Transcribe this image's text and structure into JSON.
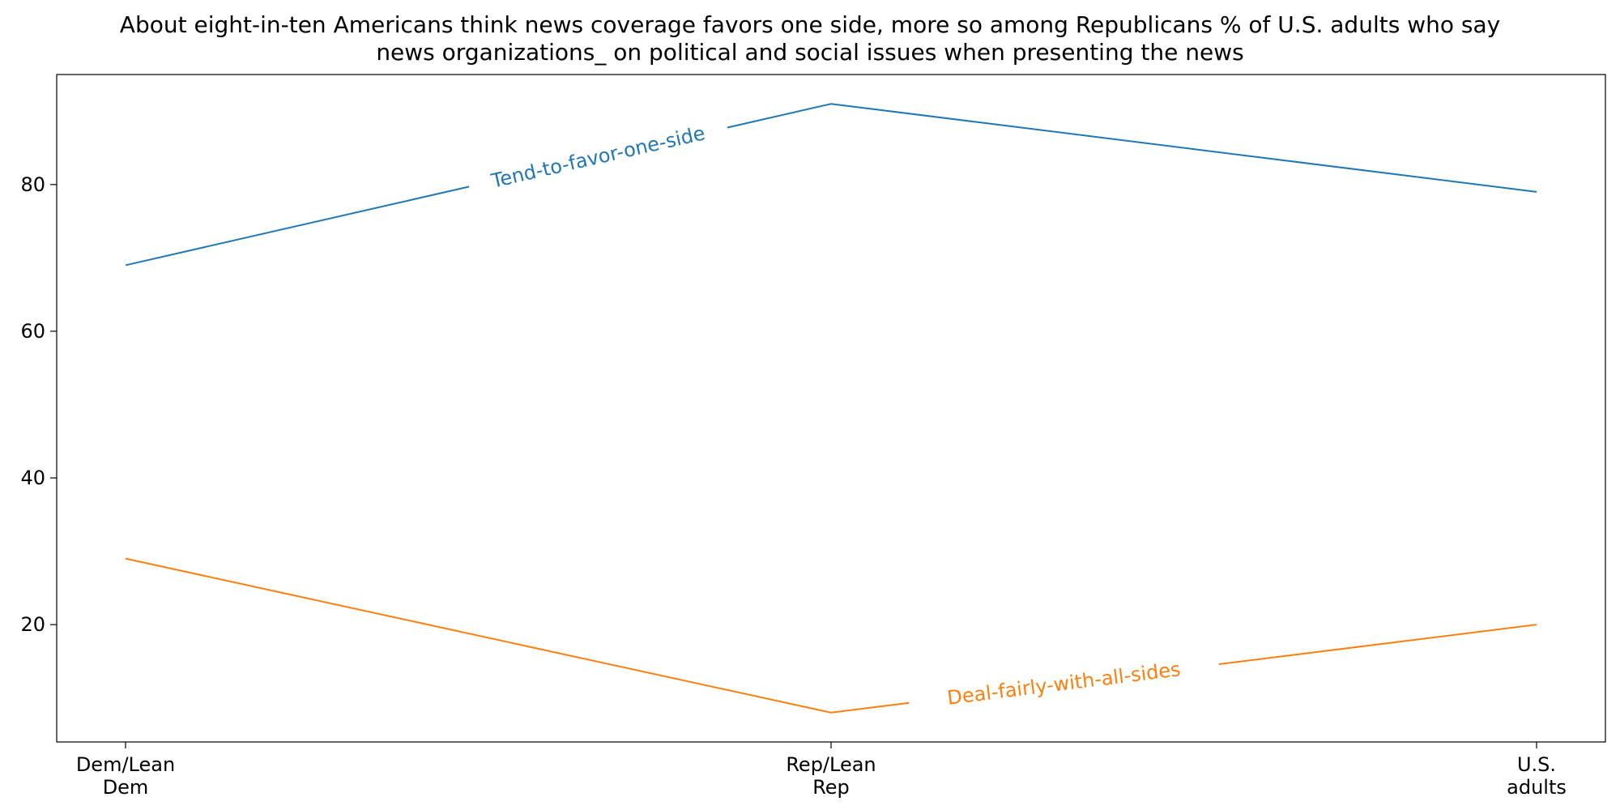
{
  "chart_data": {
    "type": "line",
    "title": "About eight-in-ten Americans think news coverage favors one side, more so among Republicans % of U.S. adults who say news organizations_ on political and social issues when presenting the news",
    "title_lines": [
      "About eight-in-ten Americans think news coverage favors one side, more so among Republicans % of U.S. adults who say",
      "news organizations_ on political and social issues when presenting the news"
    ],
    "xlabel": "",
    "ylabel": "",
    "categories": [
      "Dem/Lean Dem",
      "Rep/Lean Rep",
      "U.S. adults"
    ],
    "category_lines": [
      [
        "Dem/Lean",
        "Dem"
      ],
      [
        "Rep/Lean",
        "Rep"
      ],
      [
        "U.S.",
        "adults"
      ]
    ],
    "series": [
      {
        "name": "Tend-to-favor-one-side",
        "values": [
          69,
          91,
          79
        ],
        "color": "#1f77b4"
      },
      {
        "name": "Deal-fairly-with-all-sides",
        "values": [
          29,
          8,
          20
        ],
        "color": "#ff7f0e"
      }
    ],
    "ylim": [
      4,
      95
    ],
    "yticks": [
      20,
      40,
      60,
      80
    ],
    "grid": false,
    "legend": "none"
  }
}
